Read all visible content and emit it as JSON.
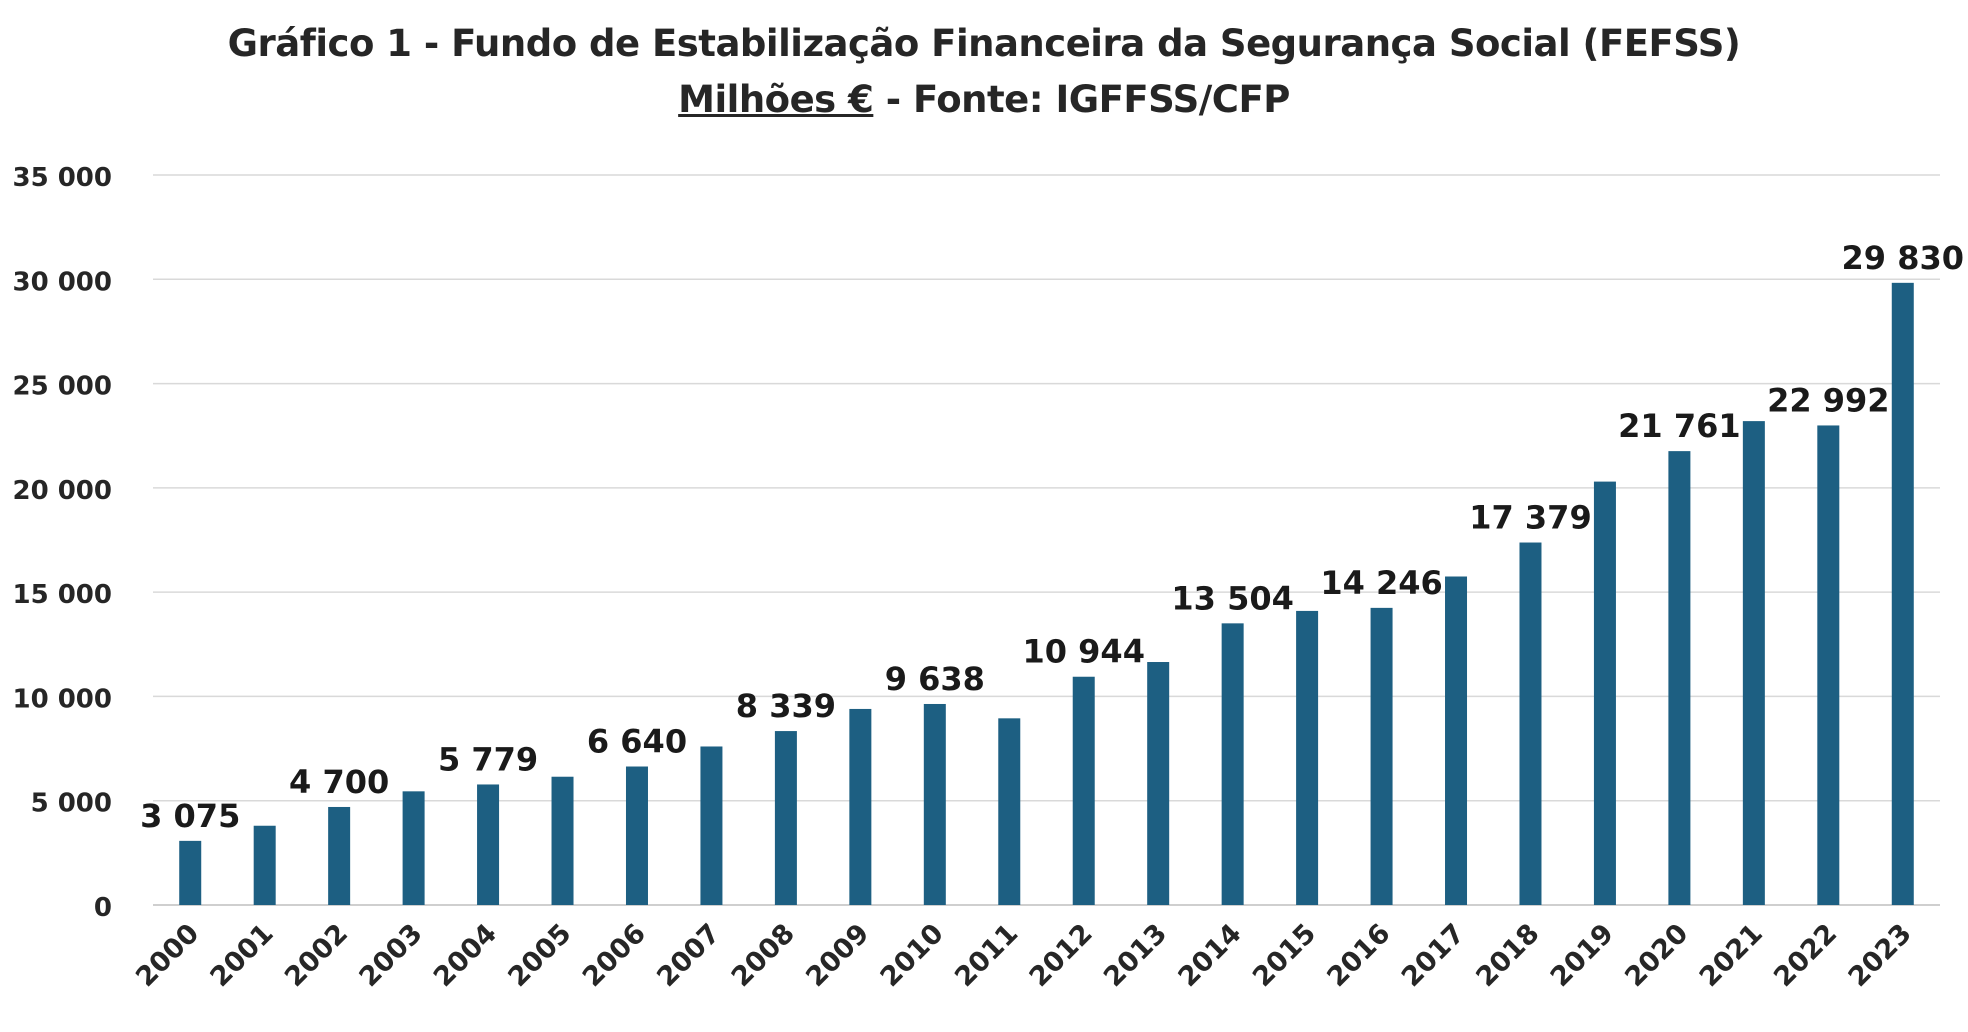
{
  "title_line1": "Gráfico 1 - Fundo de Estabilização Financeira da Segurança Social (FEFSS)",
  "title_unit": "Milhões €",
  "title_source": " -  Fonte: IGFFSS/CFP",
  "colors": {
    "bar": "#1d5f82",
    "grid": "#d9d9d9",
    "text": "#262626"
  },
  "chart_data": {
    "type": "bar",
    "title": "Gráfico 1 - Fundo de Estabilização Financeira da Segurança Social (FEFSS)",
    "subtitle": "Milhões € -  Fonte: IGFFSS/CFP",
    "xlabel": "",
    "ylabel": "",
    "ylim": [
      0,
      35000
    ],
    "yticks": [
      0,
      5000,
      10000,
      15000,
      20000,
      25000,
      30000,
      35000
    ],
    "ytick_labels": [
      "0",
      "5 000",
      "10 000",
      "15 000",
      "20 000",
      "25 000",
      "30 000",
      "35 000"
    ],
    "grid": true,
    "legend": "none",
    "categories": [
      "2000",
      "2001",
      "2002",
      "2003",
      "2004",
      "2005",
      "2006",
      "2007",
      "2008",
      "2009",
      "2010",
      "2011",
      "2012",
      "2013",
      "2014",
      "2015",
      "2016",
      "2017",
      "2018",
      "2019",
      "2020",
      "2021",
      "2022",
      "2023"
    ],
    "values": [
      3075,
      3800,
      4700,
      5450,
      5779,
      6150,
      6640,
      7600,
      8339,
      9400,
      9638,
      8950,
      10944,
      11650,
      13504,
      14100,
      14246,
      15750,
      17379,
      20300,
      21761,
      23200,
      22992,
      29830
    ],
    "data_labels": [
      "3 075",
      "",
      "4 700",
      "",
      "5 779",
      "",
      "6 640",
      "",
      "8 339",
      "",
      "9 638",
      "",
      "10 944",
      "",
      "13 504",
      "",
      "14 246",
      "",
      "17 379",
      "",
      "21 761",
      "",
      "22 992",
      "29 830"
    ]
  }
}
